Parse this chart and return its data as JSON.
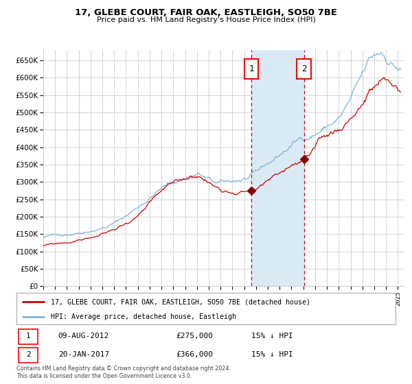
{
  "title": "17, GLEBE COURT, FAIR OAK, EASTLEIGH, SO50 7BE",
  "subtitle": "Price paid vs. HM Land Registry's House Price Index (HPI)",
  "legend_house": "17, GLEBE COURT, FAIR OAK, EASTLEIGH, SO50 7BE (detached house)",
  "legend_hpi": "HPI: Average price, detached house, Eastleigh",
  "sale1_date": "09-AUG-2012",
  "sale1_price": 275000,
  "sale1_label": "15% ↓ HPI",
  "sale2_date": "20-JAN-2017",
  "sale2_price": 366000,
  "sale2_label": "15% ↓ HPI",
  "sale1_x": 2012.6,
  "sale2_x": 2017.05,
  "hpi_color": "#7ab4d8",
  "house_color": "#cc0000",
  "marker_color": "#8b0000",
  "vline_color": "#cc0000",
  "shade_color": "#daeaf5",
  "grid_color": "#cccccc",
  "bg_color": "#ffffff",
  "ylim": [
    0,
    680000
  ],
  "xlim_start": 1995.0,
  "xlim_end": 2025.5,
  "footer": "Contains HM Land Registry data © Crown copyright and database right 2024.\nThis data is licensed under the Open Government Licence v3.0."
}
